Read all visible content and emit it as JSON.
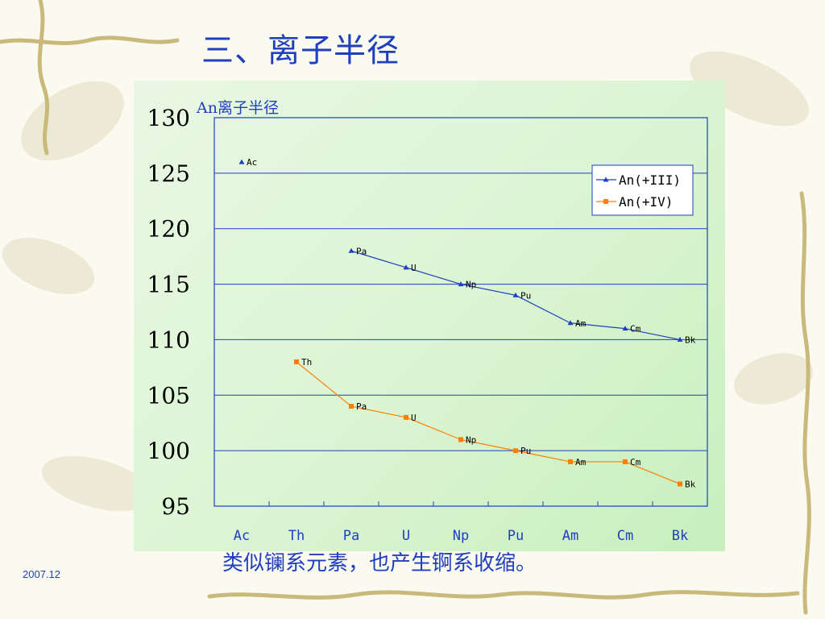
{
  "slide": {
    "title": "三、离子半径",
    "caption": "类似镧系元素，也产生锕系收缩。",
    "date": "2007.12"
  },
  "colors": {
    "title_text": "#1f3fbf",
    "plot_border": "#1f3fbf",
    "series_iii": "#1f3fbf",
    "series_iv": "#ff7f00",
    "panel_bg": "#dcf5d4"
  },
  "chart_data": {
    "type": "line",
    "title": "An离子半径",
    "xlabel": "",
    "ylabel": "",
    "categories": [
      "Ac",
      "Th",
      "Pa",
      "U",
      "Np",
      "Pu",
      "Am",
      "Cm",
      "Bk"
    ],
    "ylim": [
      95,
      130
    ],
    "yticks": [
      95,
      100,
      105,
      110,
      115,
      120,
      125,
      130
    ],
    "grid": "horizontal",
    "legend_position": "top-right",
    "series": [
      {
        "name": "An(+III)",
        "marker": "triangle",
        "values": [
          126,
          null,
          118,
          116.5,
          115,
          114,
          111.5,
          111,
          110
        ],
        "point_labels": [
          "Ac",
          null,
          "Pa",
          "U",
          "Np",
          "Pu",
          "Am",
          "Cm",
          "Bk"
        ]
      },
      {
        "name": "An(+IV)",
        "marker": "square",
        "values": [
          null,
          108,
          104,
          103,
          101,
          100,
          99,
          99,
          97
        ],
        "point_labels": [
          null,
          "Th",
          "Pa",
          "U",
          "Np",
          "Pu",
          "Am",
          "Cm",
          "Bk"
        ]
      }
    ]
  }
}
